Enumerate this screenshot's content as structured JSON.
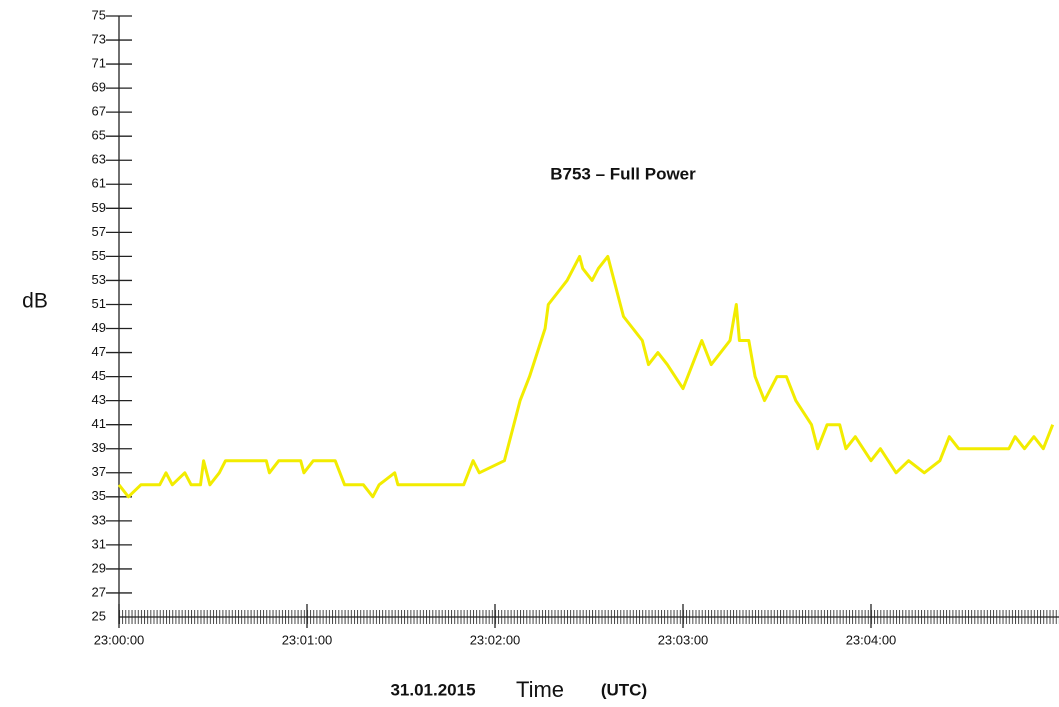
{
  "chart_data": {
    "type": "line",
    "title": "B753 – Full Power",
    "ylabel": "dB",
    "date": "31.01.2015",
    "xlabel": "Time",
    "xlabel_unit": "(UTC)",
    "x": [
      "23:00:00",
      "23:00:03",
      "23:00:07",
      "23:00:13",
      "23:00:15",
      "23:00:17",
      "23:00:21",
      "23:00:23",
      "23:00:26",
      "23:00:27",
      "23:00:29",
      "23:00:32",
      "23:00:34",
      "23:00:47",
      "23:00:48",
      "23:00:51",
      "23:00:58",
      "23:00:59",
      "23:01:02",
      "23:01:09",
      "23:01:12",
      "23:01:18",
      "23:01:21",
      "23:01:23",
      "23:01:28",
      "23:01:29",
      "23:01:50",
      "23:01:53",
      "23:01:55",
      "23:02:03",
      "23:02:06",
      "23:02:08",
      "23:02:11",
      "23:02:16",
      "23:02:17",
      "23:02:20",
      "23:02:23",
      "23:02:27",
      "23:02:28",
      "23:02:31",
      "23:02:33",
      "23:02:36",
      "23:02:39",
      "23:02:41",
      "23:02:44",
      "23:02:47",
      "23:02:49",
      "23:02:52",
      "23:02:55",
      "23:03:00",
      "23:03:03",
      "23:03:06",
      "23:03:09",
      "23:03:12",
      "23:03:15",
      "23:03:17",
      "23:03:18",
      "23:03:21",
      "23:03:23",
      "23:03:26",
      "23:03:30",
      "23:03:33",
      "23:03:36",
      "23:03:41",
      "23:03:43",
      "23:03:46",
      "23:03:50",
      "23:03:52",
      "23:03:55",
      "23:04:00",
      "23:04:03",
      "23:04:08",
      "23:04:12",
      "23:04:17",
      "23:04:22",
      "23:04:25",
      "23:04:28",
      "23:04:44",
      "23:04:46",
      "23:04:49",
      "23:04:52",
      "23:04:55",
      "23:04:58"
    ],
    "values": [
      36,
      35,
      36,
      36,
      37,
      36,
      37,
      36,
      36,
      38,
      36,
      37,
      38,
      38,
      37,
      38,
      38,
      37,
      38,
      38,
      36,
      36,
      35,
      36,
      37,
      36,
      36,
      38,
      37,
      38,
      41,
      43,
      45,
      49,
      51,
      52,
      53,
      55,
      54,
      53,
      54,
      55,
      52,
      50,
      49,
      48,
      46,
      47,
      46,
      44,
      46,
      48,
      46,
      47,
      48,
      51,
      48,
      48,
      45,
      43,
      45,
      45,
      43,
      41,
      39,
      41,
      41,
      39,
      40,
      38,
      39,
      37,
      38,
      37,
      38,
      40,
      39,
      39,
      40,
      39,
      40,
      39,
      41
    ],
    "color": "#f2ec00",
    "xlim": [
      "23:00:00",
      "23:05:00"
    ],
    "xticks": [
      "23:00:00",
      "23:01:00",
      "23:02:00",
      "23:03:00",
      "23:04:00"
    ],
    "ylim": [
      25,
      75
    ],
    "yticks": [
      25,
      27,
      29,
      31,
      33,
      35,
      37,
      39,
      41,
      43,
      45,
      47,
      49,
      51,
      53,
      55,
      57,
      59,
      61,
      63,
      65,
      67,
      69,
      71,
      73,
      75
    ],
    "grid": false
  }
}
